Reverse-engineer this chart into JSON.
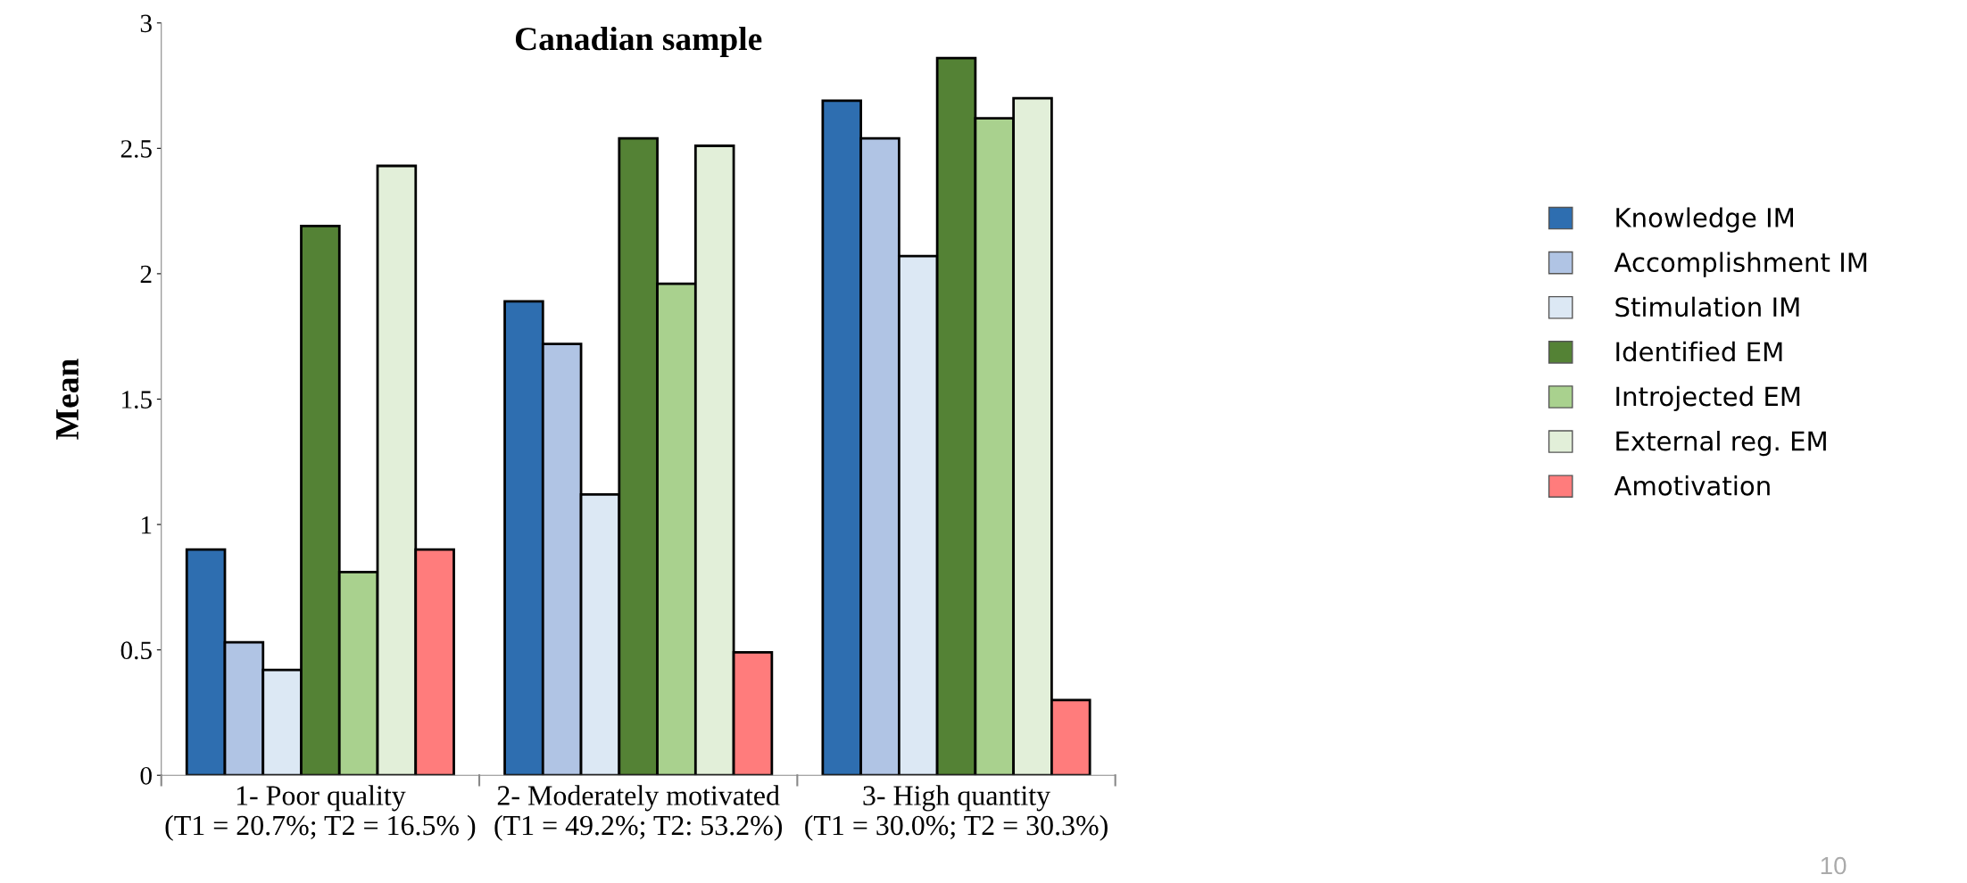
{
  "chart_data": {
    "type": "bar",
    "title": "Canadian sample",
    "ylabel": "Mean",
    "categories": [
      "1- Poor quality\n(T1 = 20.7%; T2 = 16.5% )",
      "2- Moderately motivated\n(T1 = 49.2%; T2: 53.2%)",
      "3- High quantity\n(T1 = 30.0%; T2 = 30.3%)"
    ],
    "series": [
      {
        "name": "Knowledge IM",
        "color": "#2e6eb0",
        "values": [
          0.9,
          1.89,
          2.69
        ]
      },
      {
        "name": "Accomplishment IM",
        "color": "#b0c4e4",
        "values": [
          0.53,
          1.72,
          2.54
        ]
      },
      {
        "name": "Stimulation IM",
        "color": "#dce8f4",
        "values": [
          0.42,
          1.12,
          2.07
        ]
      },
      {
        "name": "Identified EM",
        "color": "#548235",
        "values": [
          2.19,
          2.54,
          2.86
        ]
      },
      {
        "name": "Introjected EM",
        "color": "#a9d18e",
        "values": [
          0.81,
          1.96,
          2.62
        ]
      },
      {
        "name": "External reg. EM",
        "color": "#e2efd9",
        "values": [
          2.43,
          2.51,
          2.7
        ]
      },
      {
        "name": "Amotivation",
        "color": "#ff7c7c",
        "values": [
          0.9,
          0.49,
          0.3
        ]
      }
    ],
    "ylim": [
      0,
      3
    ],
    "yticks": [
      0,
      {
        "value": 0.5,
        "label": "0.5"
      },
      1,
      {
        "value": 1.5,
        "label": "1.5"
      },
      2,
      {
        "value": 2.5,
        "label": "2.5"
      },
      3
    ],
    "grid": false,
    "legend": "right",
    "annotations": [
      "10"
    ]
  }
}
